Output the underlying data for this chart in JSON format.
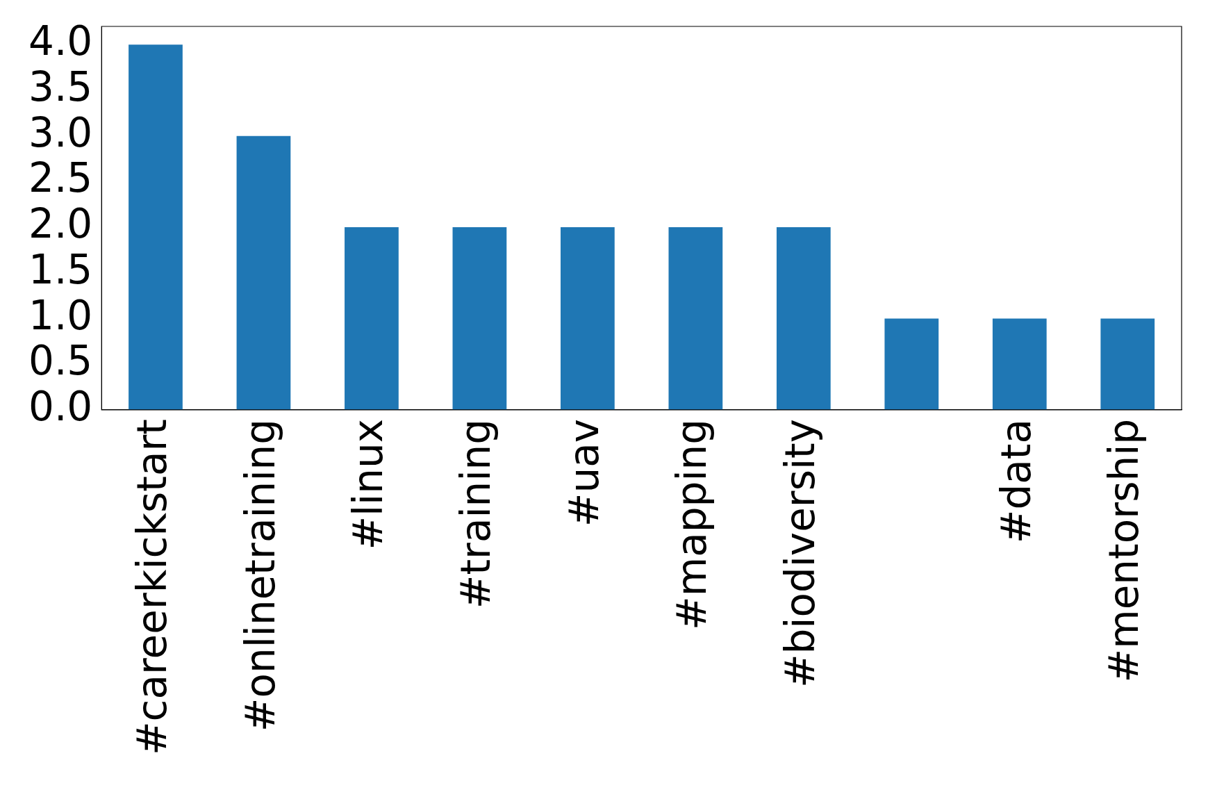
{
  "chart_data": {
    "type": "bar",
    "categories": [
      "#careerkickstart",
      "#onlinetraining",
      "#linux",
      "#training",
      "#uav",
      "#mapping",
      "#biodiversity",
      null,
      "#data",
      "#mentorship"
    ],
    "values": [
      4,
      3,
      2,
      2,
      2,
      2,
      2,
      1,
      1,
      1
    ],
    "color": "#1f77b4",
    "ylim": [
      0,
      4.2
    ],
    "yticks": [
      {
        "value": 0,
        "label": "0.0"
      },
      0.5,
      {
        "value": 1,
        "label": "1.0"
      },
      1.5,
      {
        "value": 2,
        "label": "2.0"
      },
      2.5,
      {
        "value": 3,
        "label": "3.0"
      },
      3.5,
      {
        "value": 4,
        "label": "4.0"
      }
    ],
    "grid": false,
    "legend": false
  }
}
